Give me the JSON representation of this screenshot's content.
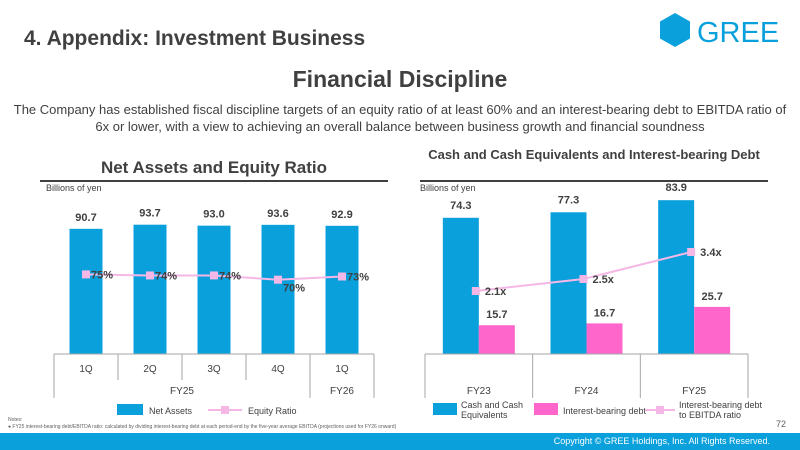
{
  "header": {
    "section_title": "4. Appendix: Investment Business",
    "logo_text": "GREE",
    "brand_color": "#0aa0dc"
  },
  "page_title": "Financial Discipline",
  "lead_text": "The Company has established fiscal discipline targets of an equity ratio of at least 60% and an interest-bearing debt to EBITDA ratio of 6x or lower, with a view to achieving an overall balance between business growth and financial soundness",
  "left_chart": {
    "title": "Net Assets and Equity Ratio",
    "unit": "Billions of yen",
    "legend": {
      "bar": "Net Assets",
      "line": "Equity Ratio"
    }
  },
  "right_chart": {
    "title": "Cash and Cash Equivalents and Interest-bearing Debt",
    "unit": "Billions of yen",
    "legend": {
      "cash": "Cash and Cash Equivalents",
      "debt": "Interest-bearing debt",
      "ratio": "Interest-bearing debt to EBITDA ratio"
    }
  },
  "chart_data": [
    {
      "type": "bar",
      "title": "Net Assets and Equity Ratio",
      "unit": "Billions of yen",
      "categories": [
        "1Q",
        "2Q",
        "3Q",
        "4Q",
        "1Q"
      ],
      "groups": [
        {
          "label": "FY25",
          "span": 4
        },
        {
          "label": "FY26",
          "span": 1
        }
      ],
      "series": [
        {
          "name": "Net Assets",
          "kind": "bar",
          "color": "#0aa0dc",
          "values": [
            90.7,
            93.7,
            93.0,
            93.6,
            92.9
          ],
          "labels": [
            "90.7",
            "93.7",
            "93.0",
            "93.6",
            "92.9"
          ]
        },
        {
          "name": "Equity Ratio",
          "kind": "line",
          "color": "#f5b8e6",
          "values": [
            75,
            74,
            74,
            70,
            73
          ],
          "labels": [
            "75%",
            "74%",
            "74%",
            "70%",
            "73%"
          ]
        }
      ],
      "ylim": [
        0,
        100
      ],
      "ylim_line": [
        0,
        130
      ]
    },
    {
      "type": "bar",
      "title": "Cash and Cash Equivalents and Interest-bearing Debt",
      "unit": "Billions of yen",
      "categories": [
        "FY23",
        "FY24",
        "FY25"
      ],
      "series": [
        {
          "name": "Cash and Cash Equivalents",
          "kind": "bar",
          "color": "#0aa0dc",
          "values": [
            74.3,
            77.3,
            83.9
          ],
          "labels": [
            "74.3",
            "77.3",
            "83.9"
          ]
        },
        {
          "name": "Interest-bearing debt",
          "kind": "bar",
          "color": "#ff66cc",
          "values": [
            15.7,
            16.7,
            25.7
          ],
          "labels": [
            "15.7",
            "16.7",
            "25.7"
          ]
        },
        {
          "name": "Interest-bearing debt to EBITDA ratio",
          "kind": "line",
          "color": "#f5b8e6",
          "values": [
            2.1,
            2.5,
            3.4
          ],
          "labels": [
            "2.1x",
            "2.5x",
            "3.4x"
          ]
        }
      ],
      "ylim": [
        0,
        90
      ],
      "ylim_line": [
        0,
        5.5
      ]
    }
  ],
  "notes": {
    "label": "Notes:",
    "items": [
      "FY25 interest-bearing debt/EBITDA ratio: calculated by dividing interest-bearing debt at each period-end by the five-year average EBITDA (projections used for FY26 onward)"
    ]
  },
  "page_number": "72",
  "footer": {
    "copyright": "Copyright © GREE Holdings, Inc. All Rights Reserved."
  }
}
